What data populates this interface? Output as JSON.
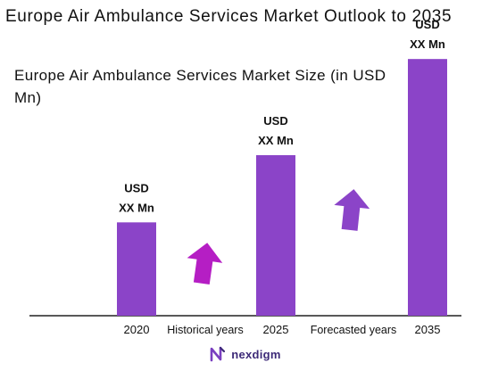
{
  "title": "Europe Air Ambulance Services Market Outlook to 2035",
  "subtitle": "Europe Air Ambulance Services Market Size (in USD Mn)",
  "chart_data": {
    "type": "bar",
    "categories": [
      "2020",
      "2025",
      "2035"
    ],
    "values": [
      1.0,
      1.72,
      2.75
    ],
    "value_labels": [
      [
        "USD",
        "XX Mn"
      ],
      [
        "USD",
        "XX Mn"
      ],
      [
        "USD",
        "XX Mn"
      ]
    ],
    "ylim": [
      0,
      3
    ],
    "gap_labels": [
      "Historical years",
      "Forecasted years"
    ],
    "bar_color": "#8b44c8",
    "arrow_colors": [
      "#b51ec4",
      "#8b44c8"
    ],
    "grid": false,
    "legend": "none"
  },
  "brand": {
    "name": "nexdigm",
    "icon": "nexdigm-logo-icon",
    "color": "#3d2a78"
  }
}
